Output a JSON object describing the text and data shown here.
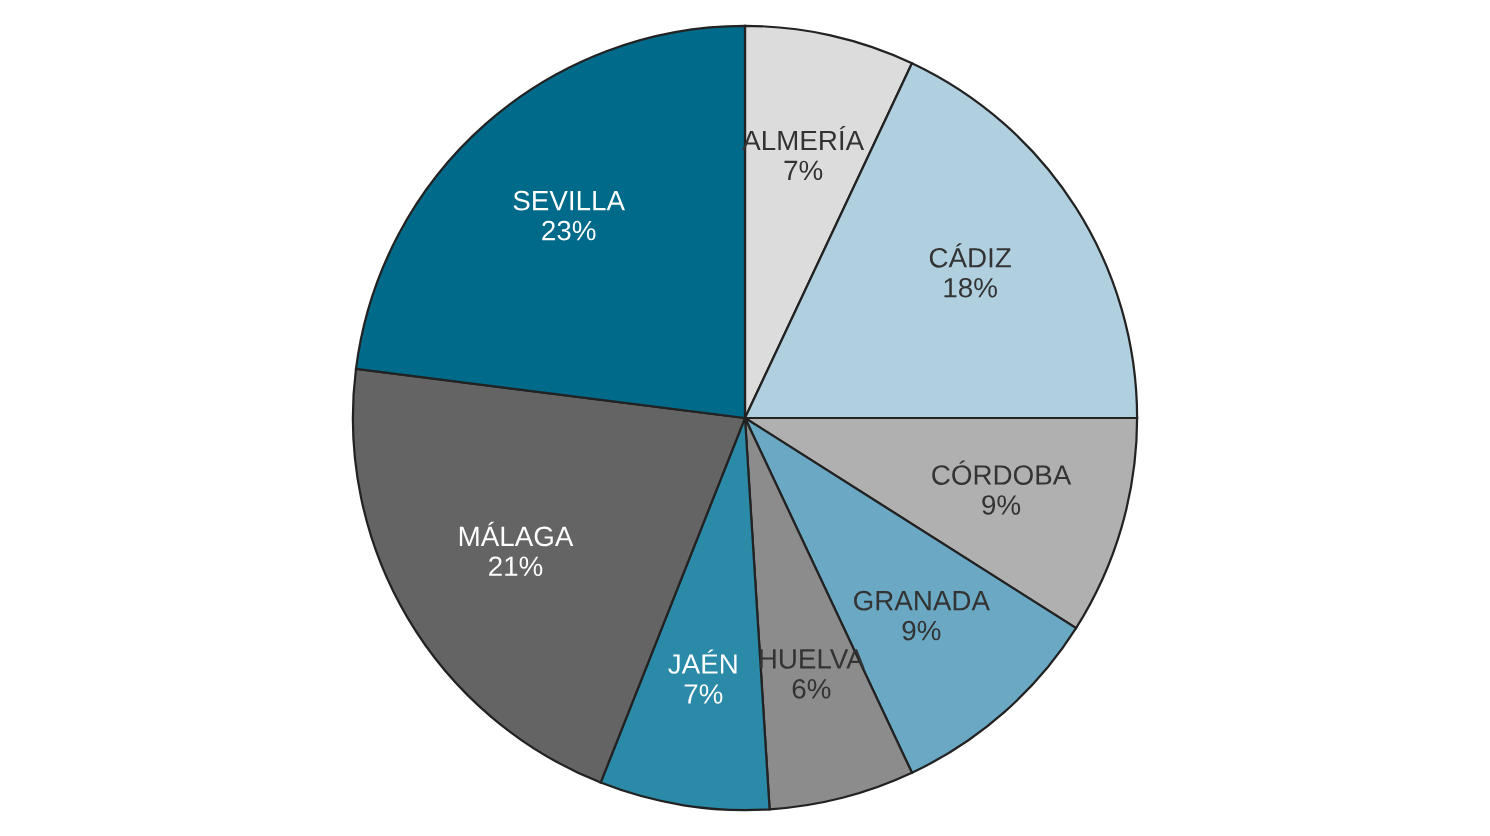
{
  "chart_data": {
    "type": "pie",
    "categories": [
      "ALMERÍA",
      "CÁDIZ",
      "CÓRDOBA",
      "GRANADA",
      "HUELVA",
      "JAÉN",
      "MÁLAGA",
      "SEVILLA"
    ],
    "values": [
      7,
      18,
      9,
      9,
      6,
      7,
      21,
      23
    ],
    "colors": [
      "#dcdcdc",
      "#b0d0df",
      "#b0b0b0",
      "#6aa8c4",
      "#8c8c8c",
      "#2a8aa8",
      "#646464",
      "#006a8a"
    ],
    "value_labels": [
      "7%",
      "18%",
      "9%",
      "9%",
      "6%",
      "7%",
      "21%",
      "23%"
    ]
  }
}
